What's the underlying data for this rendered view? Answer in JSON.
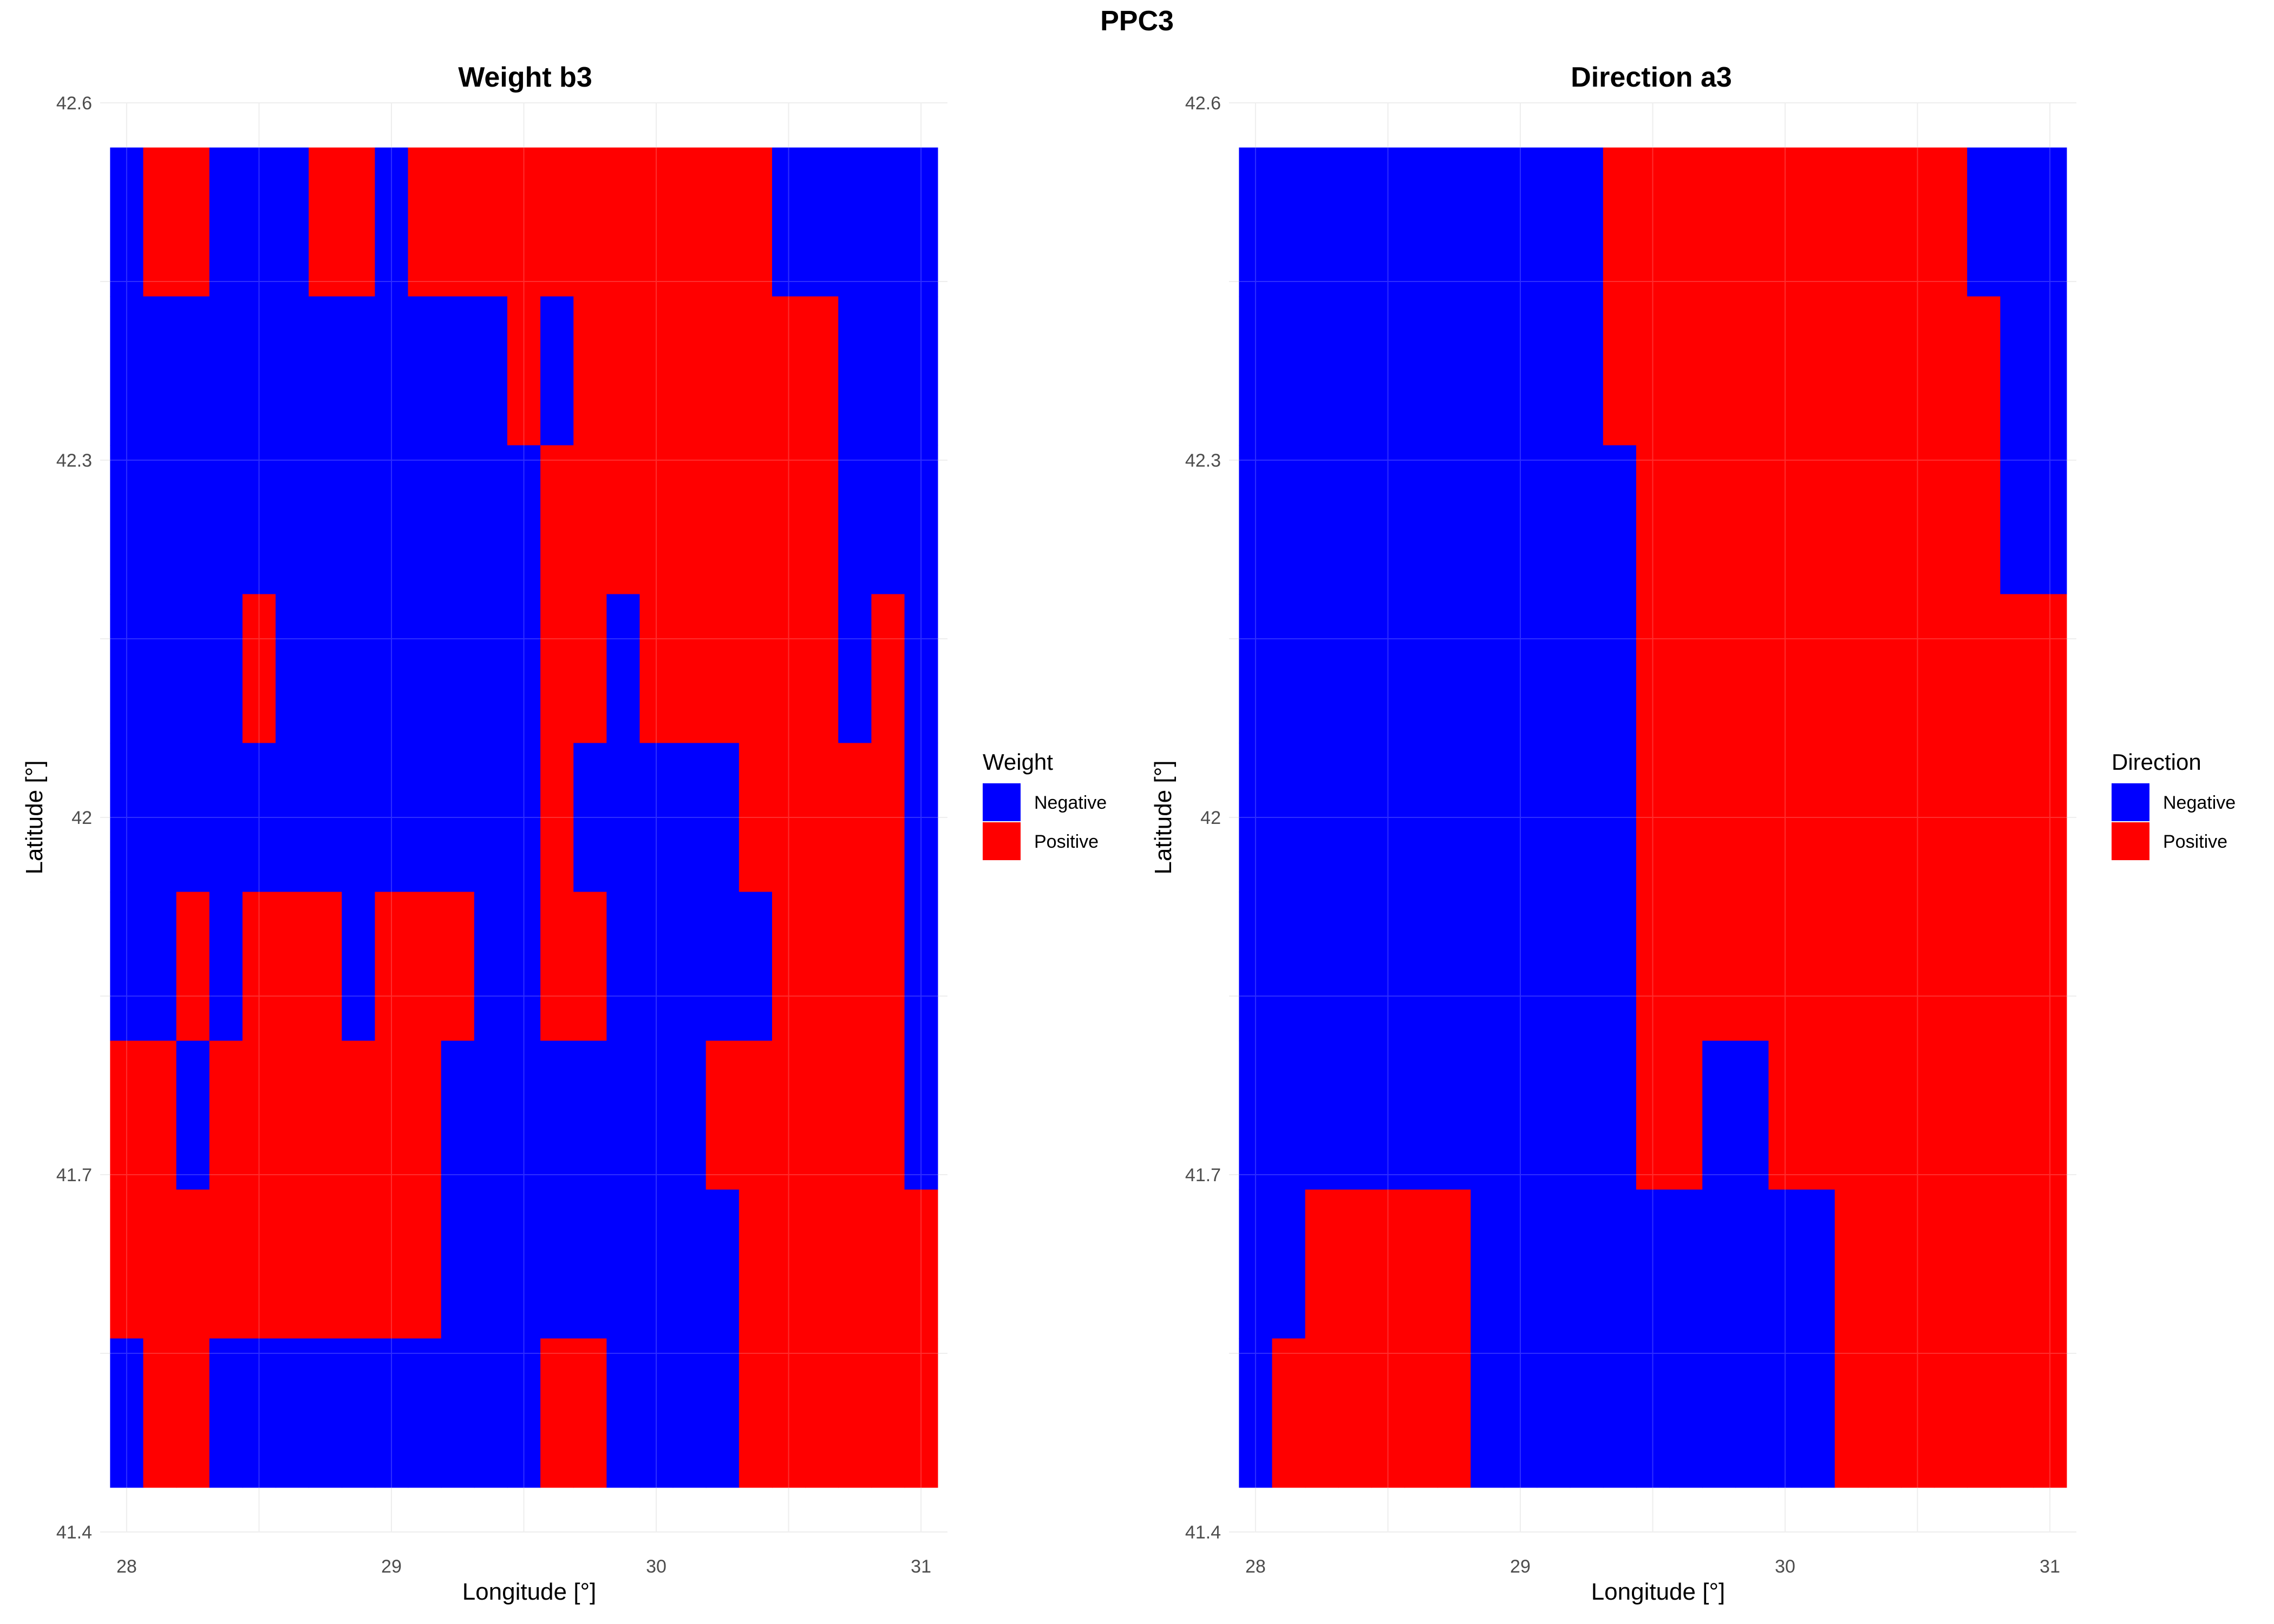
{
  "figure": {
    "title": "PPC3"
  },
  "chart_data": [
    {
      "type": "heatmap",
      "title": "Weight b3",
      "xlabel": "Longitude [°]",
      "ylabel": "Latitude [°]",
      "xticks": [
        28,
        29,
        30,
        31
      ],
      "yticks": [
        41.4,
        41.7,
        42.0,
        42.3,
        42.6
      ],
      "xlim": [
        27.9,
        31.1
      ],
      "ylim": [
        41.4,
        42.6
      ],
      "grid": true,
      "legend": {
        "title": "Weight",
        "position": "right",
        "entries": [
          "Negative",
          "Positive"
        ]
      },
      "colors": {
        "Negative": "#0000FF",
        "Positive": "#FF0000"
      },
      "lon": [
        28.0,
        28.125,
        28.25,
        28.375,
        28.5,
        28.625,
        28.75,
        28.875,
        29.0,
        29.125,
        29.25,
        29.375,
        29.5,
        29.625,
        29.75,
        29.875,
        30.0,
        30.125,
        30.25,
        30.375,
        30.5,
        30.625,
        30.75,
        30.875,
        31.0
      ],
      "lat": [
        42.5,
        42.375,
        42.25,
        42.125,
        42.0,
        41.875,
        41.75,
        41.625,
        41.5
      ],
      "values": [
        "NPPNNNPPNPPPPPPPPPPPNNNNN",
        "NNNNNNNNNNNNPNPPPPPPPPNNN",
        "NNNNNNNNNNNNNPPPPPPPPPNNN",
        "NNNNPNNNNNNNNPPNPPPPPPNPN",
        "NNNNNNNNNNNNNPNNNNNPPPPPN",
        "NNPNPPPNPPPNNPPNNNNNPPPPN",
        "PPNPPPPPPPNNNNNNNNPPPPPPN",
        "PPPPPPPPPPNNNNNNNNNPPPPPP",
        "NPPNNNNNNNNNNPPNNNNPPPPPP"
      ]
    },
    {
      "type": "heatmap",
      "title": "Direction a3",
      "xlabel": "Longitude [°]",
      "ylabel": "Latitude [°]",
      "xticks": [
        28,
        29,
        30,
        31
      ],
      "yticks": [
        41.4,
        41.7,
        42.0,
        42.3,
        42.6
      ],
      "xlim": [
        27.9,
        31.1
      ],
      "ylim": [
        41.4,
        42.6
      ],
      "grid": true,
      "legend": {
        "title": "Direction",
        "position": "right",
        "entries": [
          "Negative",
          "Positive"
        ]
      },
      "colors": {
        "Negative": "#0000FF",
        "Positive": "#FF0000"
      },
      "lon": [
        28.0,
        28.125,
        28.25,
        28.375,
        28.5,
        28.625,
        28.75,
        28.875,
        29.0,
        29.125,
        29.25,
        29.375,
        29.5,
        29.625,
        29.75,
        29.875,
        30.0,
        30.125,
        30.25,
        30.375,
        30.5,
        30.625,
        30.75,
        30.875,
        31.0
      ],
      "lat": [
        42.5,
        42.375,
        42.25,
        42.125,
        42.0,
        41.875,
        41.75,
        41.625,
        41.5
      ],
      "values": [
        "NNNNNNNNNNNPPPPPPPPPPPNNN",
        "NNNNNNNNNNNPPPPPPPPPPPPNN",
        "NNNNNNNNNNNNPPPPPPPPPPPNN",
        "NNNNNNNNNNNNPPPPPPPPPPPPP",
        "NNNNNNNNNNNNPPPPPPPPPPPPP",
        "NNNNNNNNNNNNPPPPPPPPPPPPP",
        "NNNNNNNNNNNNPPNNPPPPPPPPP",
        "NNPPPPPNNNNNNNNNNNPPPPPPP",
        "NPPPPPPNNNNNNNNNNNPPPPPPP"
      ]
    }
  ]
}
